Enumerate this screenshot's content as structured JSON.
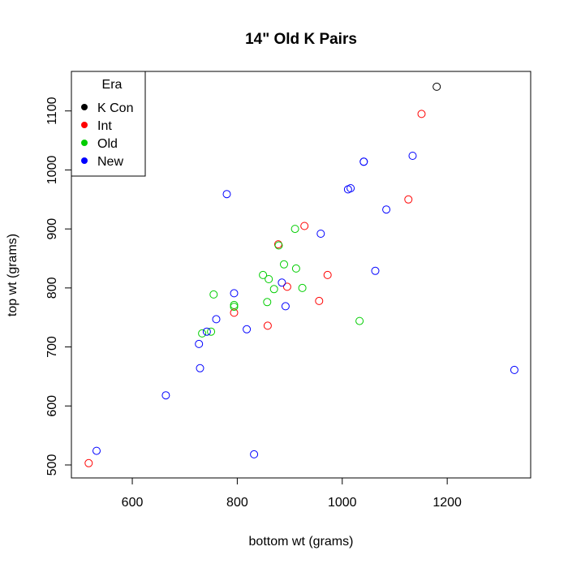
{
  "chart_data": {
    "type": "scatter",
    "title": "14\" Old K Pairs",
    "xlabel": "bottom wt (grams)",
    "ylabel": "top wt (grams)",
    "xlim": [
      484,
      1359
    ],
    "ylim": [
      478,
      1167
    ],
    "xticks": [
      600,
      800,
      1000,
      1200
    ],
    "yticks": [
      500,
      600,
      700,
      800,
      900,
      1000,
      1100
    ],
    "grid": false,
    "legend": {
      "title": "Era",
      "position": "top-left",
      "entries": [
        {
          "label": "K Con",
          "color": "#000000"
        },
        {
          "label": "Int",
          "color": "#ff0000"
        },
        {
          "label": "Old",
          "color": "#00cd00"
        },
        {
          "label": "New",
          "color": "#0000ff"
        }
      ]
    },
    "series": [
      {
        "name": "K Con",
        "color": "#000000",
        "points": [
          [
            1180,
            1141
          ]
        ]
      },
      {
        "name": "Int",
        "color": "#ff0000",
        "points": [
          [
            1151,
            1095
          ],
          [
            1126,
            950
          ],
          [
            928,
            905
          ],
          [
            878,
            874
          ],
          [
            972,
            822
          ],
          [
            895,
            802
          ],
          [
            956,
            778
          ],
          [
            858,
            736
          ],
          [
            794,
            758
          ],
          [
            517,
            503
          ]
        ]
      },
      {
        "name": "Old",
        "color": "#00cd00",
        "points": [
          [
            910,
            900
          ],
          [
            879,
            872
          ],
          [
            889,
            840
          ],
          [
            912,
            833
          ],
          [
            849,
            822
          ],
          [
            860,
            815
          ],
          [
            870,
            798
          ],
          [
            924,
            800
          ],
          [
            857,
            776
          ],
          [
            1033,
            744
          ],
          [
            755,
            789
          ],
          [
            794,
            771
          ],
          [
            794,
            768
          ],
          [
            733,
            723
          ],
          [
            750,
            726
          ]
        ]
      },
      {
        "name": "New",
        "color": "#0000ff",
        "points": [
          [
            1134,
            1024
          ],
          [
            1041,
            1014
          ],
          [
            1041,
            1014
          ],
          [
            1011,
            967
          ],
          [
            1016,
            969
          ],
          [
            1084,
            933
          ],
          [
            780,
            959
          ],
          [
            959,
            892
          ],
          [
            1063,
            829
          ],
          [
            885,
            809
          ],
          [
            892,
            769
          ],
          [
            818,
            730
          ],
          [
            794,
            791
          ],
          [
            760,
            747
          ],
          [
            742,
            726
          ],
          [
            727,
            705
          ],
          [
            729,
            664
          ],
          [
            664,
            618
          ],
          [
            532,
            524
          ],
          [
            832,
            518
          ],
          [
            1328,
            661
          ]
        ]
      }
    ]
  },
  "title": "14\" Old K Pairs",
  "xlabel": "bottom wt (grams)",
  "ylabel": "top wt (grams)",
  "legend_title": "Era"
}
